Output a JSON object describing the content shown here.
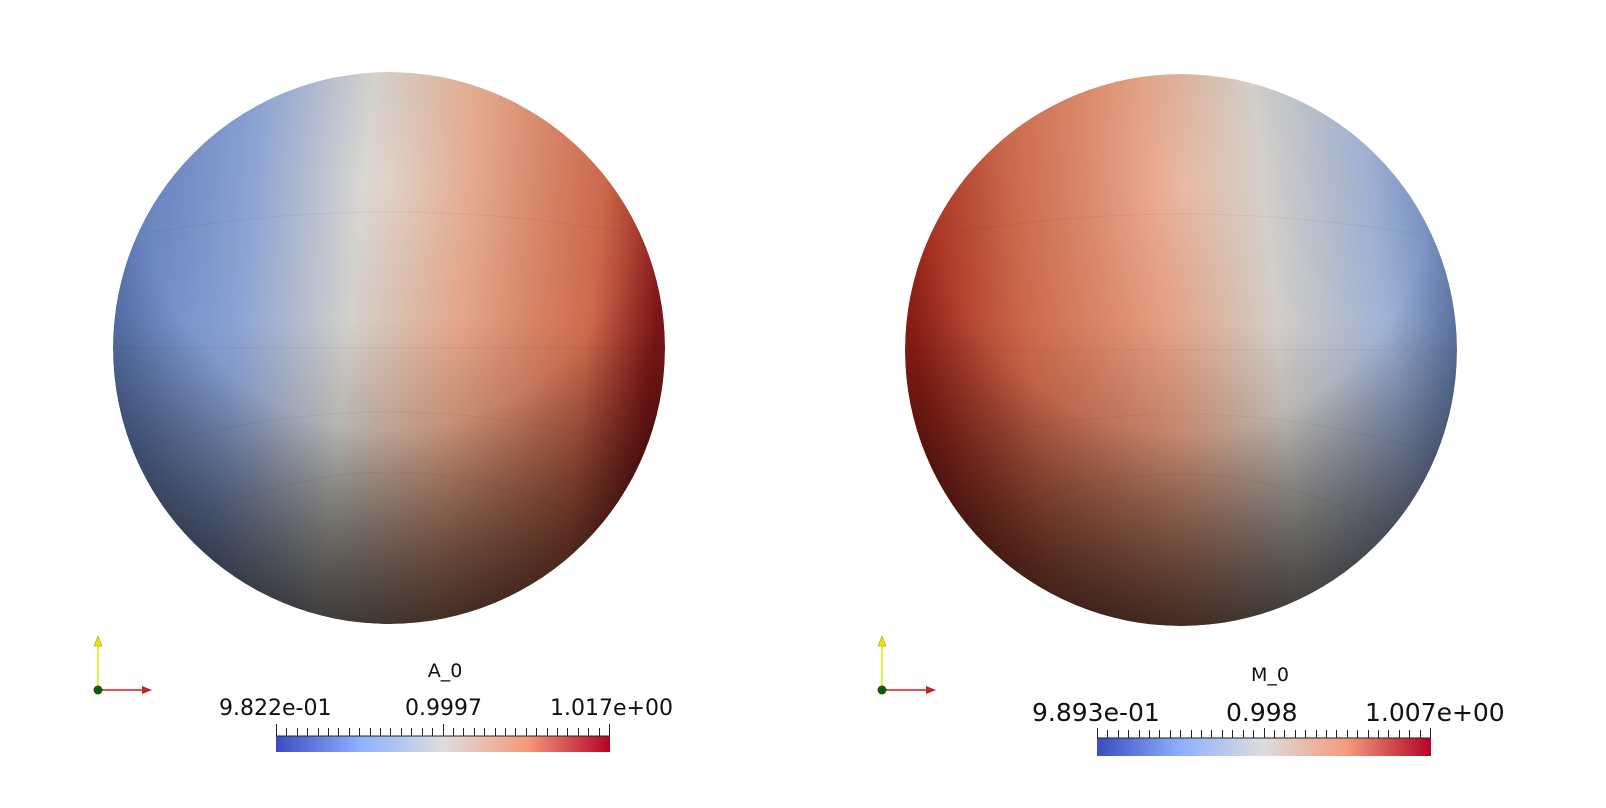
{
  "panels": [
    {
      "id": "left",
      "legend": {
        "title": "A_0",
        "min_label": "9.822e-01",
        "mid_label": "0.9997",
        "max_label": "1.017e+00"
      },
      "colormap": [
        "#3b4cc0",
        "#8db0fe",
        "#dddddd",
        "#f49a7b",
        "#b40426"
      ]
    },
    {
      "id": "right",
      "legend": {
        "title": "M_0",
        "min_label": "9.893e-01",
        "mid_label": "0.998",
        "max_label": "1.007e+00"
      },
      "colormap": [
        "#3b4cc0",
        "#8db0fe",
        "#dddddd",
        "#f49a7b",
        "#b40426"
      ]
    }
  ],
  "axes_icons": {
    "y_axis_color": "#e6e600",
    "x_axis_color": "#cc1f1f",
    "origin_color": "#0d5c0d"
  }
}
